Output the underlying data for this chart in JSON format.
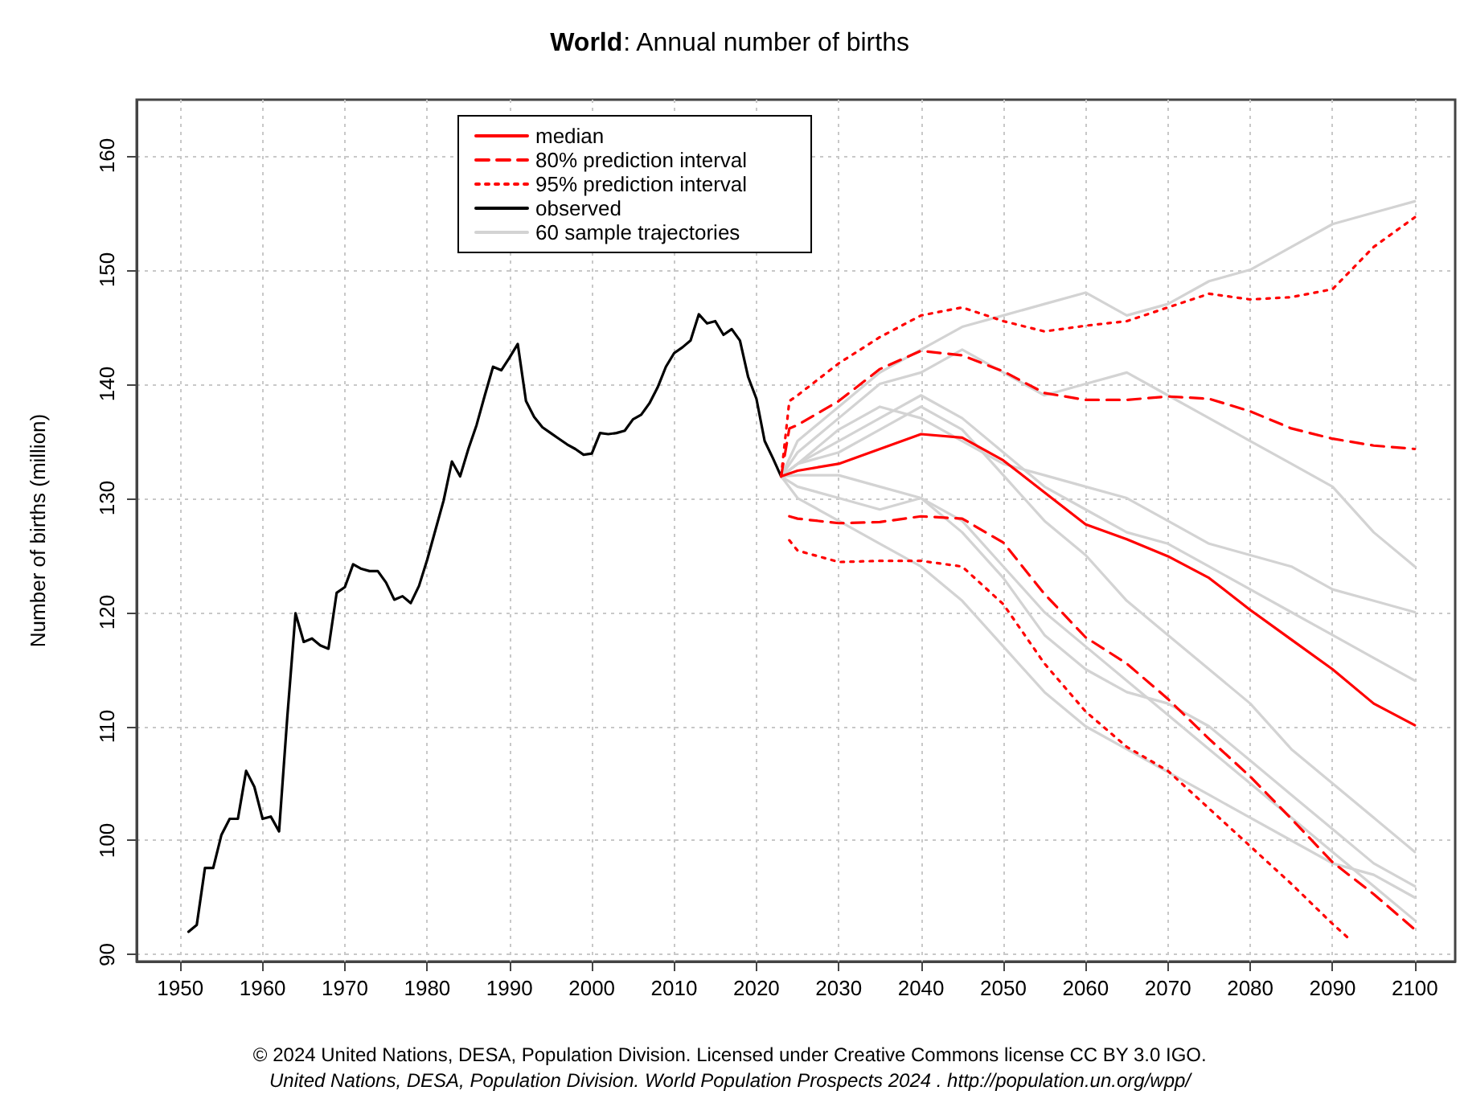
{
  "chart_data": {
    "type": "line",
    "title": "World: Annual number of births",
    "ylabel": "Number of births (million)",
    "annotations": [
      "© 2024 United Nations, DESA, Population Division. Licensed under Creative Commons license CC BY 3.0 IGO.",
      "United Nations, DESA, Population Division. World Population Prospects 2024 . http://population.un.org/wpp/"
    ],
    "xlim": [
      1944.7,
      2104.9
    ],
    "xticks": [
      1950,
      1960,
      1970,
      1980,
      1990,
      2000,
      2010,
      2020,
      2030,
      2040,
      2050,
      2060,
      2070,
      2080,
      2090,
      2100
    ],
    "ylim": [
      89.4,
      164.9
    ],
    "yticks": [
      90,
      100,
      110,
      120,
      130,
      140,
      150,
      160
    ],
    "grid": true,
    "legend": "top left",
    "marker": "none",
    "series": [
      {
        "name": "median",
        "color": "#ff0000",
        "line_style": "solid",
        "x": [
          2023,
          2025,
          2030,
          2035,
          2040,
          2045,
          2050,
          2055,
          2060,
          2065,
          2070,
          2075,
          2080,
          2085,
          2090,
          2095,
          2100
        ],
        "values": [
          131.9,
          132.4,
          133.0,
          134.3,
          135.6,
          135.3,
          133.3,
          130.5,
          127.7,
          126.4,
          124.9,
          123.0,
          120.2,
          117.6,
          115.0,
          112.0,
          110.1
        ]
      },
      {
        "name": "80% prediction interval",
        "color": "#ff0000",
        "line_style": "dashed",
        "x": [
          2023,
          2024,
          2025,
          2030,
          2035,
          2040,
          2045,
          2050,
          2055,
          2060,
          2065,
          2070,
          2075,
          2080,
          2085,
          2090,
          2095,
          2100
        ],
        "values": [
          131.9,
          136.1,
          136.4,
          138.5,
          141.3,
          142.9,
          142.5,
          141.1,
          139.2,
          138.6,
          138.6,
          138.9,
          138.7,
          137.6,
          136.1,
          135.2,
          134.6,
          134.3
        ]
      },
      {
        "color": "#ff0000",
        "line_style": "dashed",
        "x": [
          2024,
          2025,
          2030,
          2035,
          2040,
          2045,
          2050,
          2055,
          2060,
          2065,
          2070,
          2075,
          2080,
          2085,
          2090,
          2095,
          2100
        ],
        "values": [
          128.4,
          128.2,
          127.8,
          127.9,
          128.4,
          128.2,
          126.1,
          121.6,
          117.8,
          115.5,
          112.4,
          108.9,
          105.6,
          101.9,
          98.1,
          95.3,
          92.2
        ]
      },
      {
        "name": "95% prediction interval",
        "color": "#ff0000",
        "line_style": "dotted",
        "x": [
          2023,
          2024,
          2025,
          2030,
          2035,
          2040,
          2045,
          2050,
          2055,
          2060,
          2065,
          2070,
          2075,
          2080,
          2085,
          2090,
          2095,
          2100
        ],
        "values": [
          131.9,
          138.5,
          139.0,
          141.8,
          144.1,
          146.0,
          146.7,
          145.5,
          144.6,
          145.1,
          145.5,
          146.7,
          147.9,
          147.4,
          147.6,
          148.3,
          152.0,
          154.6
        ]
      },
      {
        "color": "#ff0000",
        "line_style": "dotted",
        "x": [
          2024,
          2025,
          2030,
          2035,
          2040,
          2045,
          2050,
          2055,
          2060,
          2065,
          2070,
          2075,
          2080,
          2085,
          2090,
          2092
        ],
        "values": [
          126.3,
          125.4,
          124.4,
          124.5,
          124.5,
          124.0,
          120.7,
          115.5,
          111.3,
          108.2,
          106.1,
          102.8,
          99.5,
          96.2,
          92.7,
          91.4
        ]
      },
      {
        "name": "observed",
        "color": "#000000",
        "line_style": "solid",
        "x": [
          1951,
          1952,
          1953,
          1954,
          1955,
          1956,
          1957,
          1958,
          1959,
          1960,
          1961,
          1962,
          1963,
          1964,
          1965,
          1966,
          1967,
          1968,
          1969,
          1970,
          1971,
          1972,
          1973,
          1974,
          1975,
          1976,
          1977,
          1978,
          1979,
          1980,
          1981,
          1982,
          1983,
          1984,
          1985,
          1986,
          1987,
          1988,
          1989,
          1990,
          1991,
          1992,
          1993,
          1994,
          1995,
          1996,
          1997,
          1998,
          1999,
          2000,
          2001,
          2002,
          2003,
          2004,
          2005,
          2006,
          2007,
          2008,
          2009,
          2010,
          2011,
          2012,
          2013,
          2014,
          2015,
          2016,
          2017,
          2018,
          2019,
          2020,
          2021,
          2022,
          2023
        ],
        "values": [
          92.0,
          92.6,
          97.6,
          97.6,
          100.5,
          101.9,
          101.9,
          106.1,
          104.7,
          101.9,
          102.1,
          100.8,
          110.8,
          119.9,
          117.4,
          117.7,
          117.1,
          116.8,
          121.7,
          122.2,
          124.2,
          123.8,
          123.6,
          123.6,
          122.6,
          121.1,
          121.4,
          120.8,
          122.3,
          124.6,
          127.2,
          129.8,
          133.2,
          131.9,
          134.3,
          136.4,
          139.0,
          141.5,
          141.2,
          142.3,
          143.5,
          138.5,
          137.1,
          136.2,
          135.7,
          135.2,
          134.7,
          134.3,
          133.8,
          133.9,
          135.7,
          135.6,
          135.7,
          135.9,
          136.9,
          137.3,
          138.3,
          139.7,
          141.5,
          142.7,
          143.2,
          143.8,
          146.1,
          145.3,
          145.5,
          144.3,
          144.8,
          143.8,
          140.6,
          138.7,
          135.0,
          133.5,
          131.9
        ]
      },
      {
        "name": "60 sample trajectories",
        "color": "#d3d3d3",
        "line_style": "solid",
        "x": [
          2023,
          2025,
          2030,
          2035,
          2040,
          2045,
          2050,
          2055,
          2060,
          2065,
          2070,
          2075,
          2080,
          2085,
          2090,
          2095,
          2100
        ],
        "values": [
          131.9,
          133,
          135,
          137,
          139,
          137,
          134,
          131,
          129,
          127,
          126,
          124,
          122,
          120,
          118,
          116,
          114
        ]
      },
      {
        "color": "#d3d3d3",
        "line_style": "solid",
        "x": [
          2023,
          2025,
          2030,
          2035,
          2040,
          2045,
          2050,
          2055,
          2060,
          2065,
          2070,
          2075,
          2080,
          2085,
          2090,
          2095,
          2100
        ],
        "values": [
          131.9,
          131,
          130,
          129,
          130,
          128,
          124,
          120,
          117,
          114,
          111,
          108,
          105,
          102,
          99,
          96,
          93
        ]
      },
      {
        "color": "#d3d3d3",
        "line_style": "solid",
        "x": [
          2023,
          2025,
          2030,
          2035,
          2040,
          2045,
          2050,
          2055,
          2060,
          2065,
          2070,
          2075,
          2080,
          2085,
          2090,
          2095,
          2100
        ],
        "values": [
          131.9,
          134,
          137,
          140,
          141,
          143,
          141,
          139,
          140,
          141,
          139,
          137,
          135,
          133,
          131,
          127,
          124
        ]
      },
      {
        "color": "#d3d3d3",
        "line_style": "solid",
        "x": [
          2023,
          2025,
          2030,
          2035,
          2040,
          2045,
          2050,
          2055,
          2060,
          2065,
          2070,
          2075,
          2080,
          2085,
          2090,
          2095,
          2100
        ],
        "values": [
          131.9,
          130,
          128,
          126,
          124,
          121,
          117,
          113,
          110,
          108,
          106,
          104,
          102,
          100,
          98,
          97,
          95
        ]
      },
      {
        "color": "#d3d3d3",
        "line_style": "solid",
        "x": [
          2023,
          2025,
          2030,
          2035,
          2040,
          2045,
          2050,
          2055,
          2060,
          2065,
          2070,
          2075,
          2080,
          2085,
          2090,
          2095,
          2100
        ],
        "values": [
          131.9,
          133,
          134,
          136,
          138,
          136,
          132,
          128,
          125,
          121,
          118,
          115,
          112,
          108,
          105,
          102,
          99
        ]
      },
      {
        "color": "#d3d3d3",
        "line_style": "solid",
        "x": [
          2023,
          2025,
          2030,
          2035,
          2040,
          2045,
          2050,
          2055,
          2060,
          2065,
          2070,
          2075,
          2080,
          2085,
          2090,
          2095,
          2100
        ],
        "values": [
          131.9,
          135,
          138,
          141,
          143,
          145,
          146,
          147,
          148,
          146,
          147,
          149,
          150,
          152,
          154,
          155,
          156
        ]
      },
      {
        "color": "#d3d3d3",
        "line_style": "solid",
        "x": [
          2023,
          2025,
          2030,
          2035,
          2040,
          2045,
          2050,
          2055,
          2060,
          2065,
          2070,
          2075,
          2080,
          2085,
          2090,
          2095,
          2100
        ],
        "values": [
          131.9,
          132,
          132,
          131,
          130,
          127,
          123,
          118,
          115,
          113,
          112,
          110,
          107,
          104,
          101,
          98,
          96
        ]
      },
      {
        "color": "#d3d3d3",
        "line_style": "solid",
        "x": [
          2023,
          2025,
          2030,
          2035,
          2040,
          2045,
          2050,
          2055,
          2060,
          2065,
          2070,
          2075,
          2080,
          2085,
          2090,
          2095,
          2100
        ],
        "values": [
          131.9,
          133,
          136,
          138,
          137,
          135,
          133,
          132,
          131,
          130,
          128,
          126,
          125,
          124,
          122,
          121,
          120
        ]
      }
    ]
  }
}
